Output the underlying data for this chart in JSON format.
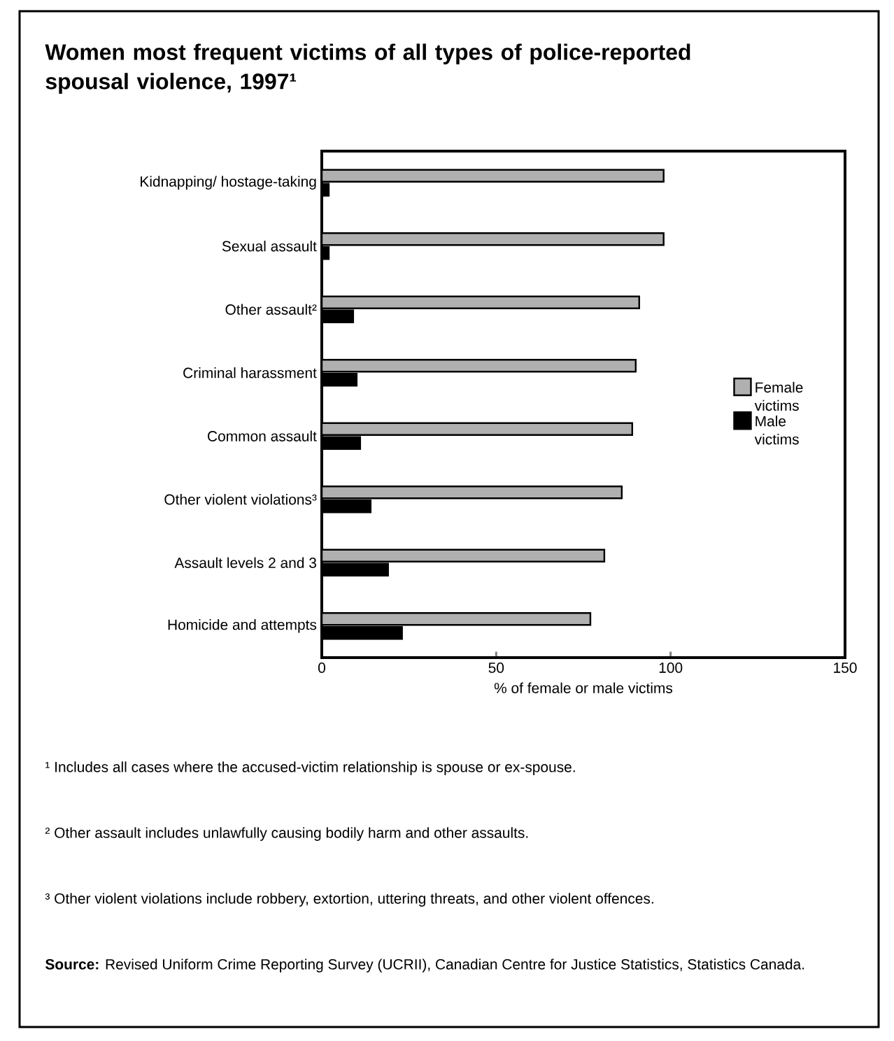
{
  "chart_data": {
    "type": "bar",
    "orientation": "horizontal",
    "title": "Women most frequent victims of all types of police-reported spousal violence, 1997¹",
    "xlabel": "% of female or male victims",
    "categories": [
      "Kidnapping/ hostage-taking",
      "Sexual assault",
      "Other assault²",
      "Criminal harassment",
      "Common assault",
      "Other violent violations³",
      "Assault levels 2 and 3",
      "Homicide and attempts"
    ],
    "series": [
      {
        "name": "Female victims",
        "color": "#b0b0b0",
        "values": [
          98,
          98,
          91,
          90,
          89,
          86,
          81,
          77
        ]
      },
      {
        "name": "Male victims",
        "color": "#000000",
        "values": [
          2,
          2,
          9,
          10,
          11,
          14,
          19,
          23
        ]
      }
    ],
    "xlim": [
      0,
      150
    ],
    "xticks": [
      0,
      50,
      100,
      150
    ],
    "grid": false,
    "legend": "right",
    "annotations": [
      "¹ Includes all cases where the accused-victim relationship is spouse or ex-spouse.",
      "² Other assault includes unlawfully causing bodily harm and other assaults.",
      "³ Other violent violations include robbery, extortion, uttering threats, and other violent offences.",
      "**Source:** Revised Uniform Crime Reporting Survey (UCRII), Canadian Centre for Justice Statistics, Statistics Canada."
    ]
  }
}
